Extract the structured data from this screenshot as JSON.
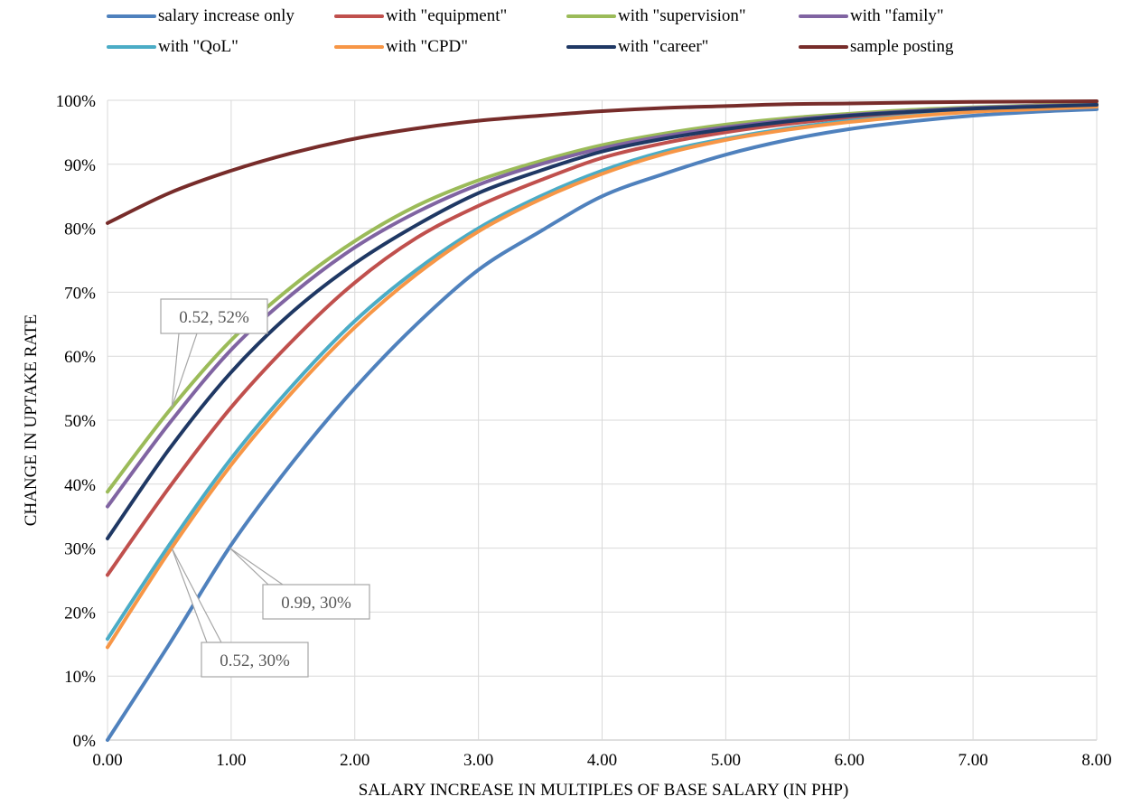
{
  "chart_data": {
    "type": "line",
    "title": "",
    "xlabel": "SALARY INCREASE IN MULTIPLES OF BASE SALARY (IN PHP)",
    "ylabel": "CHANGE IN UPTAKE RATE",
    "xlim": [
      0,
      8
    ],
    "ylim": [
      0,
      100
    ],
    "x_ticks": [
      "0.00",
      "1.00",
      "2.00",
      "3.00",
      "4.00",
      "5.00",
      "6.00",
      "7.00",
      "8.00"
    ],
    "y_ticks": [
      "0%",
      "10%",
      "20%",
      "30%",
      "40%",
      "50%",
      "60%",
      "70%",
      "80%",
      "90%",
      "100%"
    ],
    "grid": true,
    "legend_position": "top",
    "x": [
      0,
      0.5,
      1,
      1.5,
      2,
      2.5,
      3,
      3.5,
      4,
      4.5,
      5,
      5.5,
      6,
      6.5,
      7,
      7.5,
      8
    ],
    "series": [
      {
        "name": "salary increase only",
        "color": "#4F81BD",
        "values": [
          0,
          15,
          30.5,
          43.5,
          55,
          65,
          73.5,
          79.5,
          85,
          88.5,
          91.5,
          93.8,
          95.5,
          96.7,
          97.6,
          98.2,
          98.6
        ]
      },
      {
        "name": "with \"equipment\"",
        "color": "#C0504D",
        "values": [
          25.8,
          39.5,
          52,
          62.5,
          71.5,
          78.5,
          83.5,
          87.5,
          91,
          93.3,
          95,
          96.3,
          97.3,
          98,
          98.5,
          98.9,
          99.2
        ]
      },
      {
        "name": "with \"supervision\"",
        "color": "#9BBB59",
        "values": [
          38.8,
          51.5,
          62.5,
          71,
          78,
          83.5,
          87.5,
          90.5,
          93,
          94.8,
          96.2,
          97.2,
          97.9,
          98.5,
          98.9,
          99.2,
          99.4
        ]
      },
      {
        "name": "with \"family\"",
        "color": "#8064A2",
        "values": [
          36.5,
          49.5,
          61,
          69.8,
          77,
          82.5,
          86.8,
          90,
          92.5,
          94.4,
          95.8,
          96.9,
          97.7,
          98.3,
          98.8,
          99.1,
          99.3
        ]
      },
      {
        "name": "with \"QoL\"",
        "color": "#4BACC6",
        "values": [
          15.8,
          30.5,
          44,
          55.5,
          65.5,
          73.5,
          80,
          85,
          89,
          92,
          94,
          95.6,
          96.8,
          97.6,
          98.3,
          98.7,
          99
        ]
      },
      {
        "name": "with \"CPD\"",
        "color": "#F79646",
        "values": [
          14.5,
          29.5,
          43,
          54.5,
          64.5,
          72.8,
          79.5,
          84.5,
          88.5,
          91.6,
          93.8,
          95.4,
          96.6,
          97.5,
          98.2,
          98.6,
          99
        ]
      },
      {
        "name": "with \"career\"",
        "color": "#1F3864",
        "values": [
          31.5,
          45.5,
          57.5,
          67,
          74.5,
          80.5,
          85.5,
          89,
          92,
          94,
          95.5,
          96.7,
          97.6,
          98.2,
          98.7,
          99,
          99.3
        ]
      },
      {
        "name": "sample posting",
        "color": "#772C2A",
        "values": [
          80.8,
          85.5,
          89,
          91.8,
          94,
          95.6,
          96.8,
          97.6,
          98.3,
          98.8,
          99.1,
          99.4,
          99.5,
          99.65,
          99.75,
          99.8,
          99.85
        ]
      }
    ],
    "annotations": [
      {
        "text": "0.52, 52%",
        "point_x": 0.52,
        "point_y": 52
      },
      {
        "text": "0.99, 30%",
        "point_x": 0.99,
        "point_y": 30
      },
      {
        "text": "0.52, 30%",
        "point_x": 0.52,
        "point_y": 30
      }
    ]
  }
}
